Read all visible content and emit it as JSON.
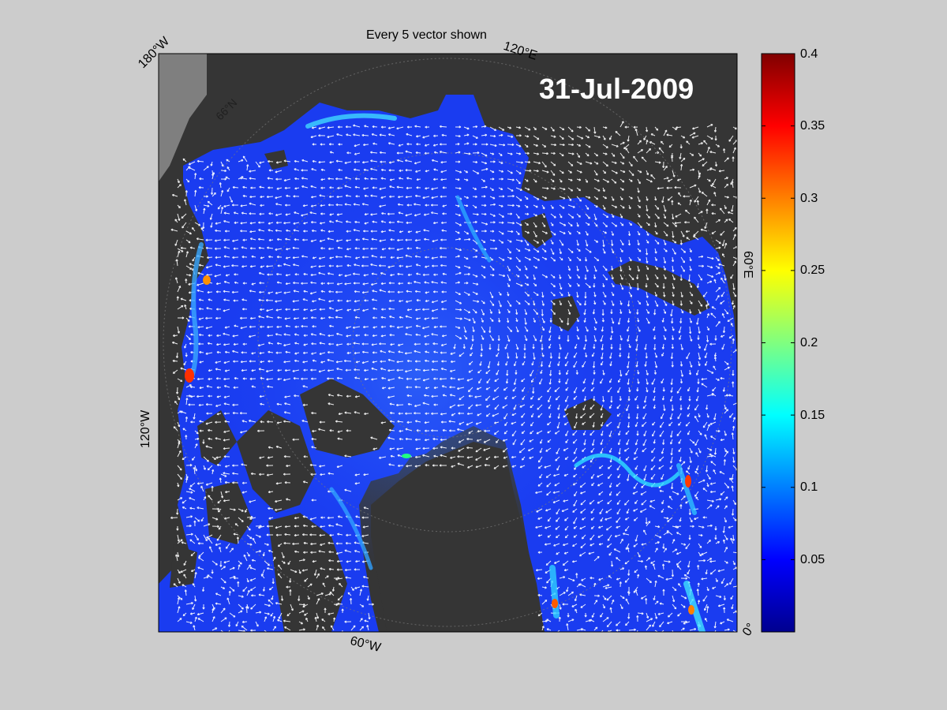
{
  "figure": {
    "title": "Every 5 vector shown",
    "date": "31-Jul-2009",
    "longitude_labels": {
      "w180": "180°W",
      "e120": "120°E",
      "e60": "60°E",
      "w120": "120°W",
      "w60": "60°W",
      "zero": "0°"
    },
    "latitude_labels": {
      "n66": "66°N"
    }
  },
  "colors": {
    "background": "#cccccc",
    "land": "#353535",
    "land_edge": "#7f7f7f",
    "vector": "#ffffff",
    "colormap": "jet"
  },
  "colorbar": {
    "min": 0,
    "max": 0.4,
    "ticks": [
      "0.4",
      "0.35",
      "0.3",
      "0.25",
      "0.2",
      "0.15",
      "0.1",
      "0.05"
    ],
    "tick_values": [
      0.4,
      0.35,
      0.3,
      0.25,
      0.2,
      0.15,
      0.1,
      0.05
    ]
  }
}
